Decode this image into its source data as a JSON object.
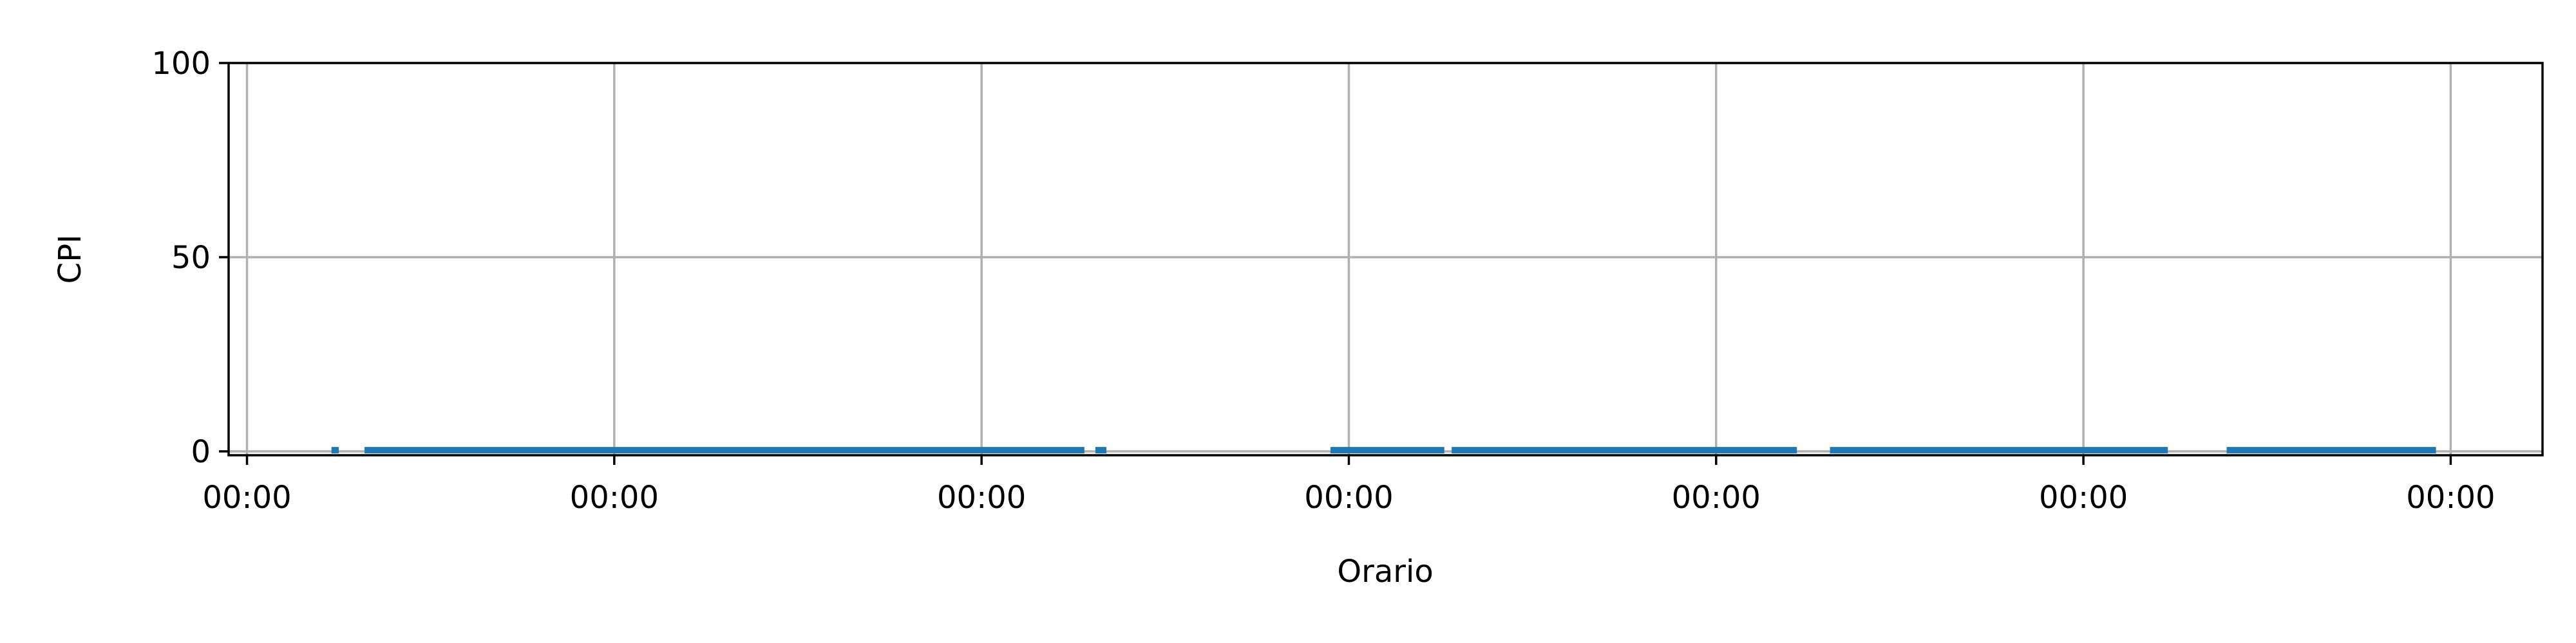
{
  "chart_data": {
    "type": "line",
    "xlabel": "Orario",
    "ylabel": "CPI",
    "x_tick_labels": [
      "00:00",
      "00:00",
      "00:00",
      "00:00",
      "00:00",
      "00:00",
      "00:00"
    ],
    "x_tick_positions": [
      0,
      1,
      2,
      3,
      4,
      5,
      6
    ],
    "xlim": [
      -0.05,
      6.25
    ],
    "ylim": [
      -1,
      100
    ],
    "y_ticks": [
      0,
      50,
      100
    ],
    "y_tick_labels": [
      "0",
      "50",
      "100"
    ],
    "grid": true,
    "series": [
      {
        "color": "#1f77b4",
        "segments": [
          [
            0.23,
            0.25
          ],
          [
            0.32,
            2.28
          ],
          [
            2.31,
            2.34
          ],
          [
            2.95,
            3.26
          ],
          [
            3.28,
            4.22
          ],
          [
            4.31,
            5.23
          ],
          [
            5.39,
            5.96
          ]
        ],
        "value": 0.3
      }
    ]
  }
}
